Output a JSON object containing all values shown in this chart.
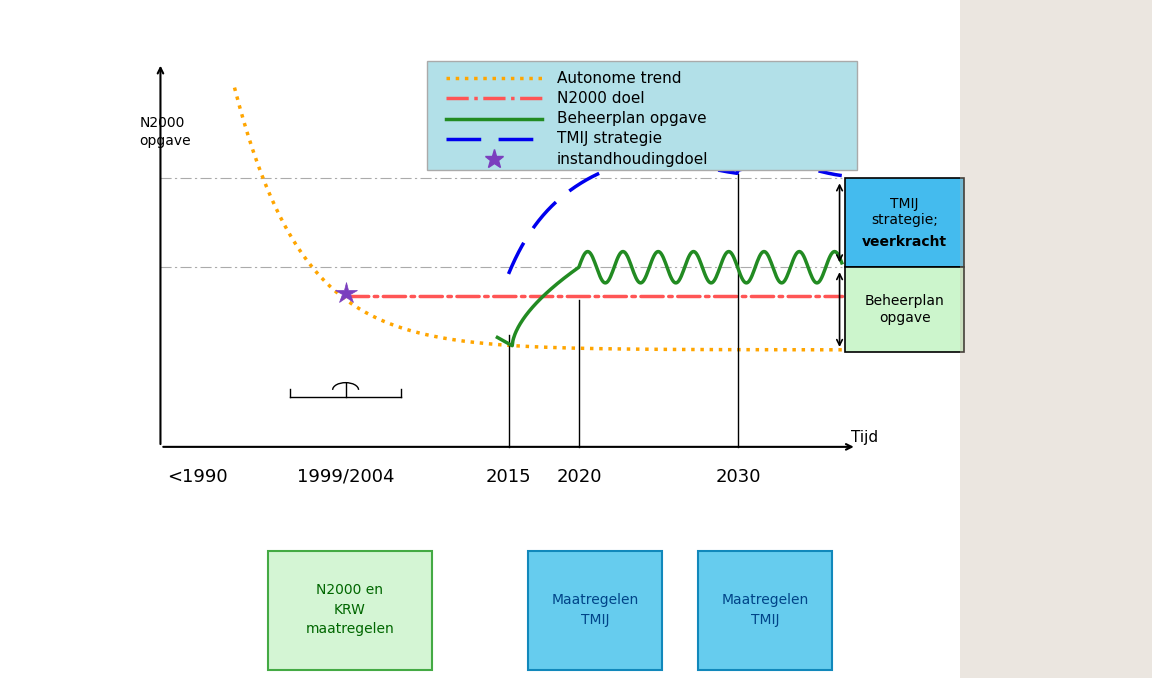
{
  "bg_color": "#ffffff",
  "ylabel": "N2000\nopgave",
  "xlabel": "Tijd",
  "legend_bg": "#b2e0e8",
  "autonomous_color": "#FFA500",
  "n2000_color": "#FF5555",
  "beheerplan_color": "#228B22",
  "tmij_color": "#0000EE",
  "star_color": "#7B3FBE",
  "box_green_bg": "#d4f5d4",
  "box_green_border": "#44aa44",
  "box_cyan_bg": "#66ccee",
  "box_cyan_border": "#1188bb",
  "box_tmij_bg": "#44bbee",
  "box_beheer_bg": "#ccf5cc",
  "year_color": "#000000",
  "ylabel_color": "#000000",
  "annotations": {
    "lt1990": "<1990",
    "y1999": "1999/2004",
    "y2015": "2015",
    "y2020": "2020",
    "y2030": "2030"
  },
  "legend_entries": [
    "Autonome trend",
    "N2000 doel",
    "Beheerplan opgave",
    "TMIJ strategie",
    "instandhoudingdoel"
  ],
  "box_bottom_left": "N2000 en\nKRW\nmaatregelen",
  "box_bottom_mid1": "Maatregelen\nTMIJ",
  "box_bottom_mid2": "Maatregelen\nTMIJ"
}
